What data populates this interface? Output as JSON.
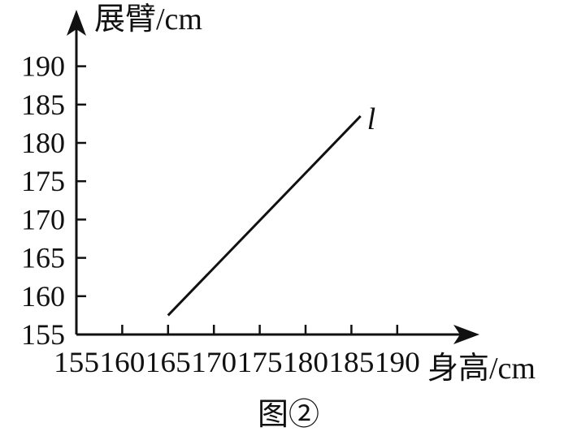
{
  "chart_data": {
    "type": "line",
    "title": "",
    "caption": "图②",
    "xlabel": "身高/cm",
    "ylabel": "展臂/cm",
    "x_ticks": [
      "155",
      "160",
      "165",
      "170",
      "175",
      "180",
      "185",
      "190"
    ],
    "y_ticks": [
      "155",
      "160",
      "165",
      "170",
      "175",
      "180",
      "185",
      "190"
    ],
    "xlim": [
      155,
      190
    ],
    "ylim": [
      155,
      190
    ],
    "grid": false,
    "series": [
      {
        "name": "l",
        "points": [
          {
            "x": 165,
            "y": 157.5
          },
          {
            "x": 186,
            "y": 183.5
          }
        ]
      }
    ]
  }
}
